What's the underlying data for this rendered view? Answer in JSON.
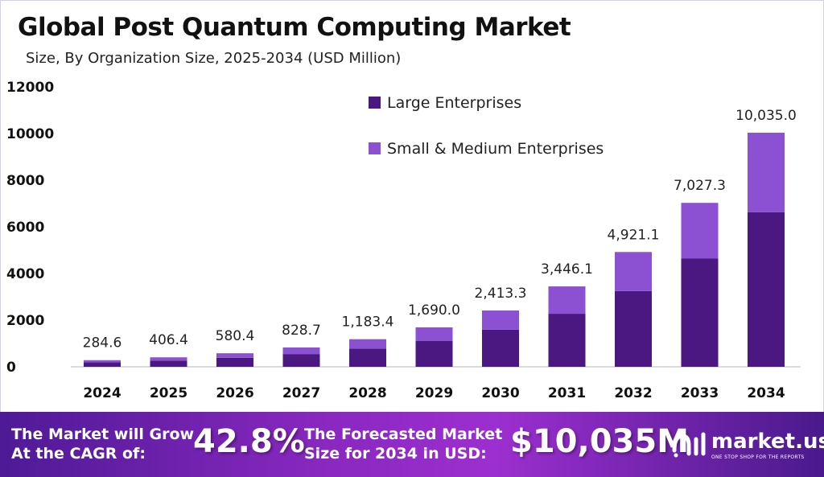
{
  "chart_data": {
    "type": "bar",
    "stacked": true,
    "title": "Global Post Quantum Computing Market",
    "subtitle": "Size, By Organization Size, 2025-2034 (USD Million)",
    "categories": [
      "2024",
      "2025",
      "2026",
      "2027",
      "2028",
      "2029",
      "2030",
      "2031",
      "2032",
      "2033",
      "2034"
    ],
    "totals": [
      284.6,
      406.4,
      580.4,
      828.7,
      1183.4,
      1690.0,
      2413.3,
      3446.1,
      4921.1,
      7027.3,
      10035.0
    ],
    "total_labels": [
      "284.6",
      "406.4",
      "580.4",
      "828.7",
      "1,183.4",
      "1,690.0",
      "2,413.3",
      "3,446.1",
      "4,921.1",
      "7,027.3",
      "10,035.0"
    ],
    "series": [
      {
        "name": "Large Enterprises",
        "color": "#4b1882",
        "values": [
          188,
          268,
          383,
          547,
          781,
          1115,
          1593,
          2274,
          3248,
          4638,
          6623
        ]
      },
      {
        "name": "Small & Medium Enterprises",
        "color": "#8c50d2",
        "values": [
          96.6,
          138.4,
          197.4,
          281.7,
          402.4,
          575.0,
          820.3,
          1172.1,
          1673.1,
          2389.3,
          3412.0
        ]
      }
    ],
    "ylim": [
      0,
      12000
    ],
    "yticks": [
      "0",
      "2000",
      "4000",
      "6000",
      "8000",
      "10000",
      "12000"
    ],
    "grid": false,
    "legend": "top-center"
  },
  "footer": {
    "cagr_text_1": "The Market will Grow",
    "cagr_text_2": "At the CAGR of:",
    "cagr_value": "42.8%",
    "forecast_text_1": "The Forecasted Market",
    "forecast_text_2": "Size for 2034 in USD:",
    "forecast_value": "$10,035M",
    "logo_name": "market.us",
    "logo_tagline": "ONE STOP SHOP FOR THE REPORTS"
  }
}
